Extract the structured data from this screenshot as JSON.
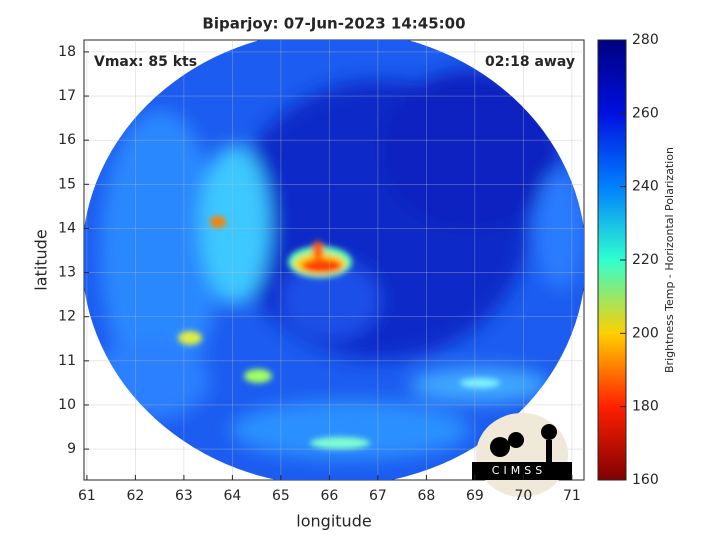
{
  "chart_data": {
    "type": "heatmap",
    "title": "Biparjoy: 07-Jun-2023 14:45:00",
    "annotations": [
      "Vmax: 85 kts",
      "02:18 away"
    ],
    "xlabel": "longitude",
    "ylabel": "latitude",
    "xlim": [
      60.94,
      71.25
    ],
    "ylim": [
      8.3,
      18.27
    ],
    "xticks": [
      61,
      62,
      63,
      64,
      65,
      66,
      67,
      68,
      69,
      70,
      71
    ],
    "yticks": [
      9,
      10,
      11,
      12,
      13,
      14,
      15,
      16,
      17,
      18
    ],
    "grid": true,
    "colorbar": {
      "label": "Brightness Temp - Horizontal Polarization",
      "lim": [
        160,
        280
      ],
      "ticks": [
        160,
        180,
        200,
        220,
        240,
        260,
        280
      ],
      "colors": [
        "#800000",
        "#ff2000",
        "#ffd000",
        "#30ffd0",
        "#0080ff",
        "#0010e0",
        "#000080"
      ]
    },
    "logo_text": "CIMSS"
  }
}
